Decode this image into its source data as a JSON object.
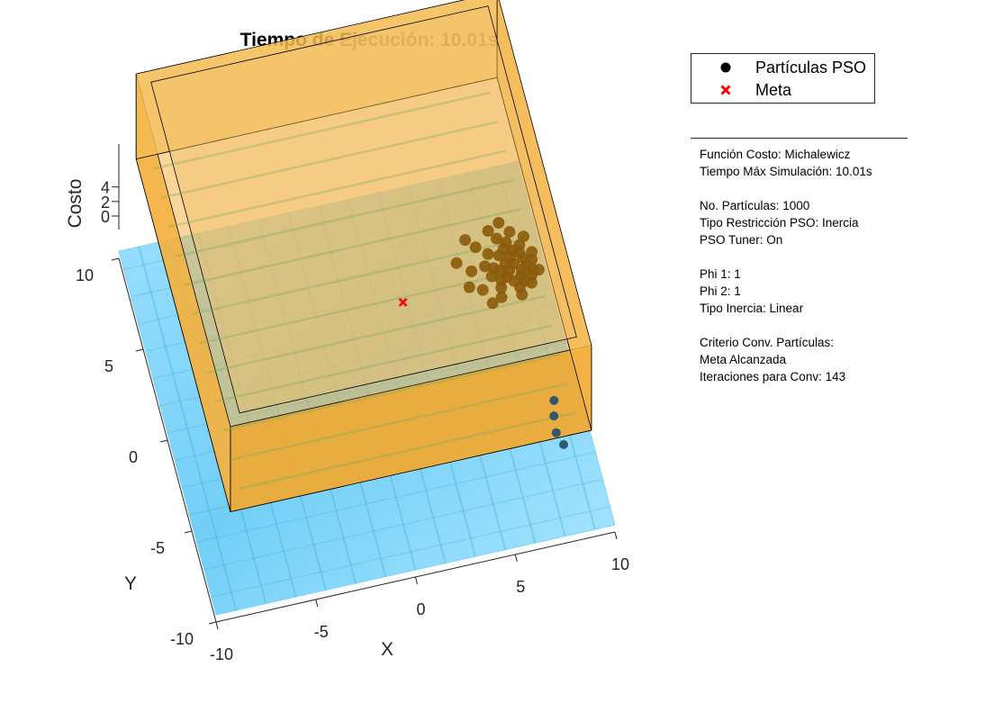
{
  "chart_data": {
    "type": "surface3d",
    "title": "Tiempo de Ejecución: 10.01s",
    "xlabel": "X",
    "ylabel": "Y",
    "zlabel": "Costo",
    "xlim": [
      -10,
      10
    ],
    "ylim": [
      -10,
      10
    ],
    "zlim": [
      0,
      4
    ],
    "xticks": [
      -10,
      -5,
      0,
      5,
      10
    ],
    "yticks": [
      -10,
      -5,
      0,
      5,
      10
    ],
    "zticks": [
      0,
      2,
      4
    ],
    "xtick_labels": [
      "-10",
      "-5",
      "0",
      "5",
      "10"
    ],
    "ytick_labels": [
      "-10",
      "-5",
      "0",
      "5",
      "10"
    ],
    "ztick_labels": [
      "0",
      "2",
      "4"
    ],
    "surface_color": "#66ccff",
    "bounds_box_color": "#f0b040",
    "goal": {
      "x": 2.2,
      "y": 1.6,
      "color": "#ff0000"
    },
    "particles_color": "#000000",
    "particles": [
      {
        "x": 7.7,
        "y": 2.3
      },
      {
        "x": 8.0,
        "y": 2.6
      },
      {
        "x": 8.3,
        "y": 2.2
      },
      {
        "x": 7.5,
        "y": 2.0
      },
      {
        "x": 8.5,
        "y": 2.8
      },
      {
        "x": 7.9,
        "y": 3.0
      },
      {
        "x": 8.2,
        "y": 1.9
      },
      {
        "x": 7.6,
        "y": 2.7
      },
      {
        "x": 8.6,
        "y": 2.4
      },
      {
        "x": 7.3,
        "y": 2.4
      },
      {
        "x": 8.1,
        "y": 3.3
      },
      {
        "x": 7.8,
        "y": 1.7
      },
      {
        "x": 8.8,
        "y": 2.1
      },
      {
        "x": 7.2,
        "y": 1.9
      },
      {
        "x": 8.4,
        "y": 3.1
      },
      {
        "x": 7.0,
        "y": 2.6
      },
      {
        "x": 8.9,
        "y": 2.6
      },
      {
        "x": 7.7,
        "y": 3.5
      },
      {
        "x": 8.3,
        "y": 1.6
      },
      {
        "x": 6.8,
        "y": 2.2
      },
      {
        "x": 9.0,
        "y": 3.0
      },
      {
        "x": 7.4,
        "y": 3.2
      },
      {
        "x": 8.7,
        "y": 1.8
      },
      {
        "x": 6.6,
        "y": 2.8
      },
      {
        "x": 7.9,
        "y": 3.8
      },
      {
        "x": 8.5,
        "y": 3.5
      },
      {
        "x": 7.1,
        "y": 1.5
      },
      {
        "x": 8.0,
        "y": 1.3
      },
      {
        "x": 6.9,
        "y": 3.4
      },
      {
        "x": 8.6,
        "y": 1.4
      },
      {
        "x": 7.5,
        "y": 4.1
      },
      {
        "x": 8.2,
        "y": 4.3
      },
      {
        "x": 5.9,
        "y": 2.7
      },
      {
        "x": 6.2,
        "y": 1.6
      },
      {
        "x": 7.2,
        "y": 4.6
      },
      {
        "x": 8.8,
        "y": 3.9
      },
      {
        "x": 6.4,
        "y": 3.9
      },
      {
        "x": 5.6,
        "y": 1.9
      },
      {
        "x": 9.1,
        "y": 2.0
      },
      {
        "x": 7.0,
        "y": 1.0
      },
      {
        "x": 8.0,
        "y": 0.9
      },
      {
        "x": 6.0,
        "y": 4.4
      },
      {
        "x": 7.8,
        "y": 4.9
      },
      {
        "x": 5.3,
        "y": 3.3
      },
      {
        "x": 6.5,
        "y": 0.8
      }
    ]
  },
  "legend": {
    "items": [
      {
        "label": "Partículas PSO",
        "marker": "filled-circle",
        "color": "#000000"
      },
      {
        "label": "Meta",
        "marker": "x-cross",
        "color": "#ff0000"
      }
    ]
  },
  "info": {
    "lines": [
      "Función Costo: Michalewicz",
      "Tiempo Máx Simulación: 10.01s",
      "",
      "No. Partículas: 1000",
      "Tipo Restricción PSO: Inercia",
      "PSO Tuner: On",
      "",
      "Phi 1: 1",
      "Phi 2: 1",
      "Tipo Inercia: Linear",
      "",
      "Criterio Conv. Partículas:",
      "Meta Alcanzada",
      "Iteraciones para Conv: 143"
    ]
  }
}
